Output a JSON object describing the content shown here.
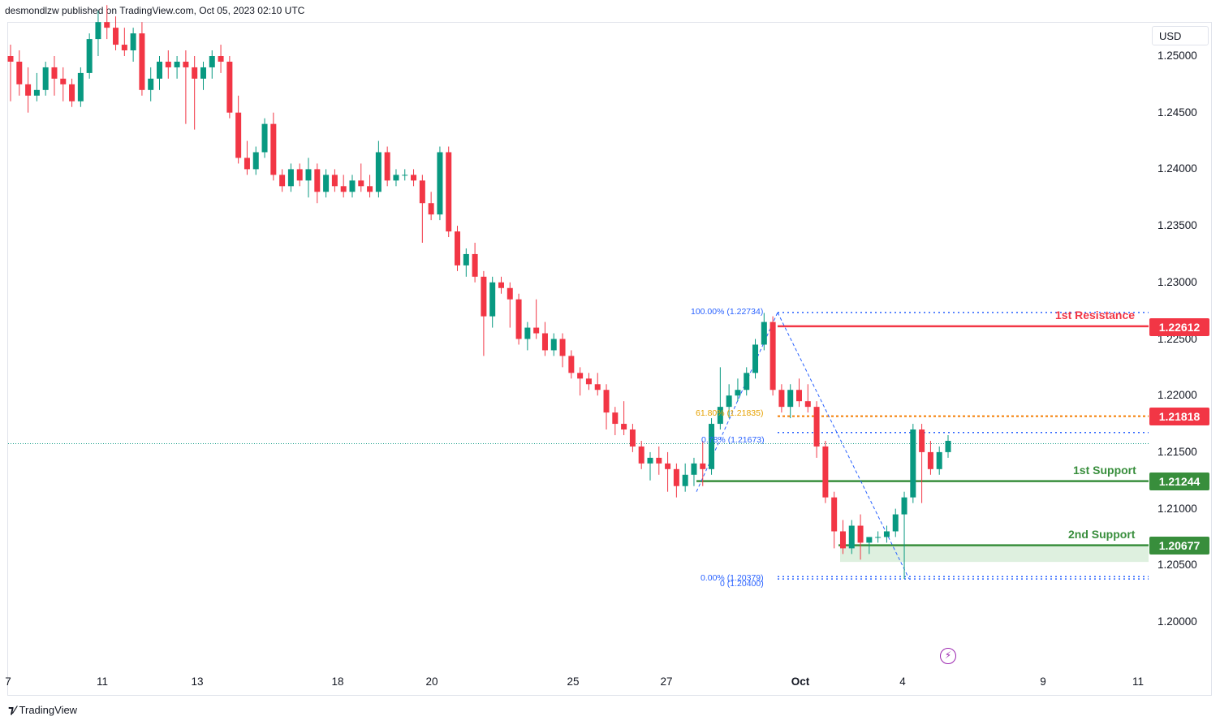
{
  "header": {
    "text": "desmondlzw published on TradingView.com, Oct 05, 2023 02:10 UTC"
  },
  "footer": {
    "brand": "TradingView",
    "logo_icon": "tradingview-logo-icon"
  },
  "price_axis": {
    "currency": "USD",
    "ticks": [
      "1.25000",
      "1.24500",
      "1.24000",
      "1.23500",
      "1.23000",
      "1.22500",
      "1.22000",
      "1.21500",
      "1.21000",
      "1.20500",
      "1.20000"
    ]
  },
  "time_axis": {
    "ticks": [
      "7",
      "11",
      "13",
      "18",
      "20",
      "25",
      "27",
      "Oct",
      "4",
      "9",
      "11"
    ]
  },
  "levels": {
    "resistance_1": {
      "label": "1st Resistance",
      "price": "1.22612",
      "color": "#f23645"
    },
    "pivot": {
      "price": "1.21818",
      "color": "#f23645"
    },
    "support_1": {
      "label": "1st Support",
      "price": "1.21244",
      "color": "#388e3c"
    },
    "support_2": {
      "label": "2nd Support",
      "price": "1.20677",
      "color": "#388e3c"
    }
  },
  "fib": {
    "top": "100.00% (1.22734)",
    "f618": "61.80% (1.21835)",
    "f786": "0.78% (1.21673)",
    "zero": "0.00% (1.20379)",
    "zero2": "0 (1.20400)"
  },
  "colors": {
    "up": "#089981",
    "down": "#f23645",
    "fib": "#2962ff",
    "fib_gold": "#f7a600"
  },
  "chart_data": {
    "type": "candlestick",
    "symbol_currency": "USD",
    "ylim": [
      1.197,
      1.2545
    ],
    "x_tick_labels": [
      "7",
      "11",
      "13",
      "18",
      "20",
      "25",
      "27",
      "Oct",
      "4",
      "9",
      "11"
    ],
    "candles": [
      [
        1.25,
        1.251,
        1.246,
        1.2495
      ],
      [
        1.2495,
        1.2505,
        1.2465,
        1.2475
      ],
      [
        1.2475,
        1.249,
        1.245,
        1.2465
      ],
      [
        1.2465,
        1.2485,
        1.246,
        1.247
      ],
      [
        1.247,
        1.2495,
        1.2465,
        1.249
      ],
      [
        1.249,
        1.25,
        1.2465,
        1.248
      ],
      [
        1.248,
        1.249,
        1.246,
        1.2475
      ],
      [
        1.2475,
        1.248,
        1.2455,
        1.246
      ],
      [
        1.246,
        1.249,
        1.2455,
        1.2485
      ],
      [
        1.2485,
        1.252,
        1.248,
        1.2515
      ],
      [
        1.2515,
        1.254,
        1.25,
        1.253
      ],
      [
        1.253,
        1.2545,
        1.2515,
        1.2525
      ],
      [
        1.2525,
        1.2535,
        1.2505,
        1.251
      ],
      [
        1.251,
        1.2525,
        1.25,
        1.2505
      ],
      [
        1.2505,
        1.2525,
        1.2495,
        1.252
      ],
      [
        1.252,
        1.253,
        1.2465,
        1.247
      ],
      [
        1.247,
        1.249,
        1.246,
        1.248
      ],
      [
        1.248,
        1.25,
        1.247,
        1.2495
      ],
      [
        1.2495,
        1.2505,
        1.248,
        1.249
      ],
      [
        1.249,
        1.25,
        1.248,
        1.2495
      ],
      [
        1.2495,
        1.2505,
        1.244,
        1.249
      ],
      [
        1.249,
        1.25,
        1.2435,
        1.248
      ],
      [
        1.248,
        1.2495,
        1.247,
        1.249
      ],
      [
        1.249,
        1.2505,
        1.248,
        1.25
      ],
      [
        1.25,
        1.251,
        1.2485,
        1.2495
      ],
      [
        1.2495,
        1.25,
        1.2445,
        1.245
      ],
      [
        1.245,
        1.2465,
        1.2405,
        1.241
      ],
      [
        1.241,
        1.2425,
        1.2395,
        1.24
      ],
      [
        1.24,
        1.242,
        1.2395,
        1.2415
      ],
      [
        1.2415,
        1.2445,
        1.241,
        1.244
      ],
      [
        1.244,
        1.245,
        1.239,
        1.2395
      ],
      [
        1.2395,
        1.24,
        1.238,
        1.2385
      ],
      [
        1.2385,
        1.2405,
        1.238,
        1.24
      ],
      [
        1.24,
        1.2405,
        1.2385,
        1.239
      ],
      [
        1.239,
        1.241,
        1.2375,
        1.24
      ],
      [
        1.24,
        1.2405,
        1.237,
        1.238
      ],
      [
        1.238,
        1.24,
        1.2375,
        1.2395
      ],
      [
        1.2395,
        1.24,
        1.238,
        1.2385
      ],
      [
        1.2385,
        1.2395,
        1.2375,
        1.238
      ],
      [
        1.238,
        1.2395,
        1.2375,
        1.239
      ],
      [
        1.239,
        1.2405,
        1.238,
        1.2385
      ],
      [
        1.2385,
        1.2395,
        1.2375,
        1.238
      ],
      [
        1.238,
        1.2425,
        1.2375,
        1.2415
      ],
      [
        1.2415,
        1.242,
        1.2385,
        1.239
      ],
      [
        1.239,
        1.24,
        1.2385,
        1.2395
      ],
      [
        1.2395,
        1.24,
        1.239,
        1.2395
      ],
      [
        1.2395,
        1.24,
        1.2385,
        1.239
      ],
      [
        1.239,
        1.2395,
        1.2335,
        1.237
      ],
      [
        1.237,
        1.238,
        1.2355,
        1.236
      ],
      [
        1.236,
        1.242,
        1.2355,
        1.2415
      ],
      [
        1.2415,
        1.242,
        1.234,
        1.2345
      ],
      [
        1.2345,
        1.235,
        1.231,
        1.2315
      ],
      [
        1.2315,
        1.233,
        1.2305,
        1.2325
      ],
      [
        1.2325,
        1.2335,
        1.23,
        1.2305
      ],
      [
        1.2305,
        1.231,
        1.2235,
        1.227
      ],
      [
        1.227,
        1.2305,
        1.226,
        1.23
      ],
      [
        1.23,
        1.2305,
        1.229,
        1.2295
      ],
      [
        1.2295,
        1.23,
        1.226,
        1.2285
      ],
      [
        1.2285,
        1.229,
        1.2245,
        1.225
      ],
      [
        1.225,
        1.2265,
        1.224,
        1.226
      ],
      [
        1.226,
        1.2285,
        1.225,
        1.2255
      ],
      [
        1.2255,
        1.2265,
        1.2235,
        1.224
      ],
      [
        1.224,
        1.2255,
        1.2235,
        1.225
      ],
      [
        1.225,
        1.2255,
        1.2225,
        1.2235
      ],
      [
        1.2235,
        1.224,
        1.2215,
        1.222
      ],
      [
        1.222,
        1.2225,
        1.22,
        1.2215
      ],
      [
        1.2215,
        1.222,
        1.2205,
        1.221
      ],
      [
        1.221,
        1.222,
        1.22,
        1.2205
      ],
      [
        1.2205,
        1.221,
        1.217,
        1.2185
      ],
      [
        1.2185,
        1.219,
        1.2165,
        1.2175
      ],
      [
        1.2175,
        1.2195,
        1.2165,
        1.217
      ],
      [
        1.217,
        1.2175,
        1.215,
        1.2155
      ],
      [
        1.2155,
        1.216,
        1.2135,
        1.214
      ],
      [
        1.214,
        1.215,
        1.2125,
        1.2145
      ],
      [
        1.2145,
        1.2155,
        1.213,
        1.214
      ],
      [
        1.214,
        1.215,
        1.2115,
        1.2135
      ],
      [
        1.2135,
        1.214,
        1.211,
        1.212
      ],
      [
        1.212,
        1.214,
        1.2115,
        1.213
      ],
      [
        1.213,
        1.2145,
        1.212,
        1.214
      ],
      [
        1.214,
        1.216,
        1.212,
        1.2135
      ],
      [
        1.2135,
        1.218,
        1.213,
        1.2175
      ],
      [
        1.2175,
        1.2225,
        1.217,
        1.219
      ],
      [
        1.219,
        1.221,
        1.218,
        1.22
      ],
      [
        1.22,
        1.2215,
        1.2195,
        1.2205
      ],
      [
        1.2205,
        1.2225,
        1.22,
        1.222
      ],
      [
        1.222,
        1.225,
        1.2215,
        1.2245
      ],
      [
        1.2245,
        1.2273,
        1.224,
        1.2265
      ],
      [
        1.2265,
        1.227,
        1.22,
        1.2205
      ],
      [
        1.2205,
        1.221,
        1.2185,
        1.219
      ],
      [
        1.219,
        1.221,
        1.218,
        1.2205
      ],
      [
        1.2205,
        1.2215,
        1.219,
        1.2195
      ],
      [
        1.2195,
        1.221,
        1.2185,
        1.219
      ],
      [
        1.219,
        1.2195,
        1.2145,
        1.2155
      ],
      [
        1.2155,
        1.216,
        1.2105,
        1.211
      ],
      [
        1.211,
        1.2115,
        1.2065,
        1.208
      ],
      [
        1.208,
        1.209,
        1.206,
        1.2065
      ],
      [
        1.2065,
        1.209,
        1.206,
        1.2085
      ],
      [
        1.2085,
        1.2095,
        1.2055,
        1.207
      ],
      [
        1.207,
        1.2075,
        1.206,
        1.2075
      ],
      [
        1.2075,
        1.208,
        1.207,
        1.2075
      ],
      [
        1.2075,
        1.2085,
        1.207,
        1.208
      ],
      [
        1.208,
        1.21,
        1.2075,
        1.2095
      ],
      [
        1.2095,
        1.2115,
        1.2038,
        1.211
      ],
      [
        1.211,
        1.2175,
        1.2105,
        1.217
      ],
      [
        1.217,
        1.2175,
        1.2105,
        1.215
      ],
      [
        1.215,
        1.216,
        1.213,
        1.2135
      ],
      [
        1.2135,
        1.2155,
        1.213,
        1.215
      ],
      [
        1.215,
        1.2165,
        1.2145,
        1.216
      ]
    ]
  }
}
